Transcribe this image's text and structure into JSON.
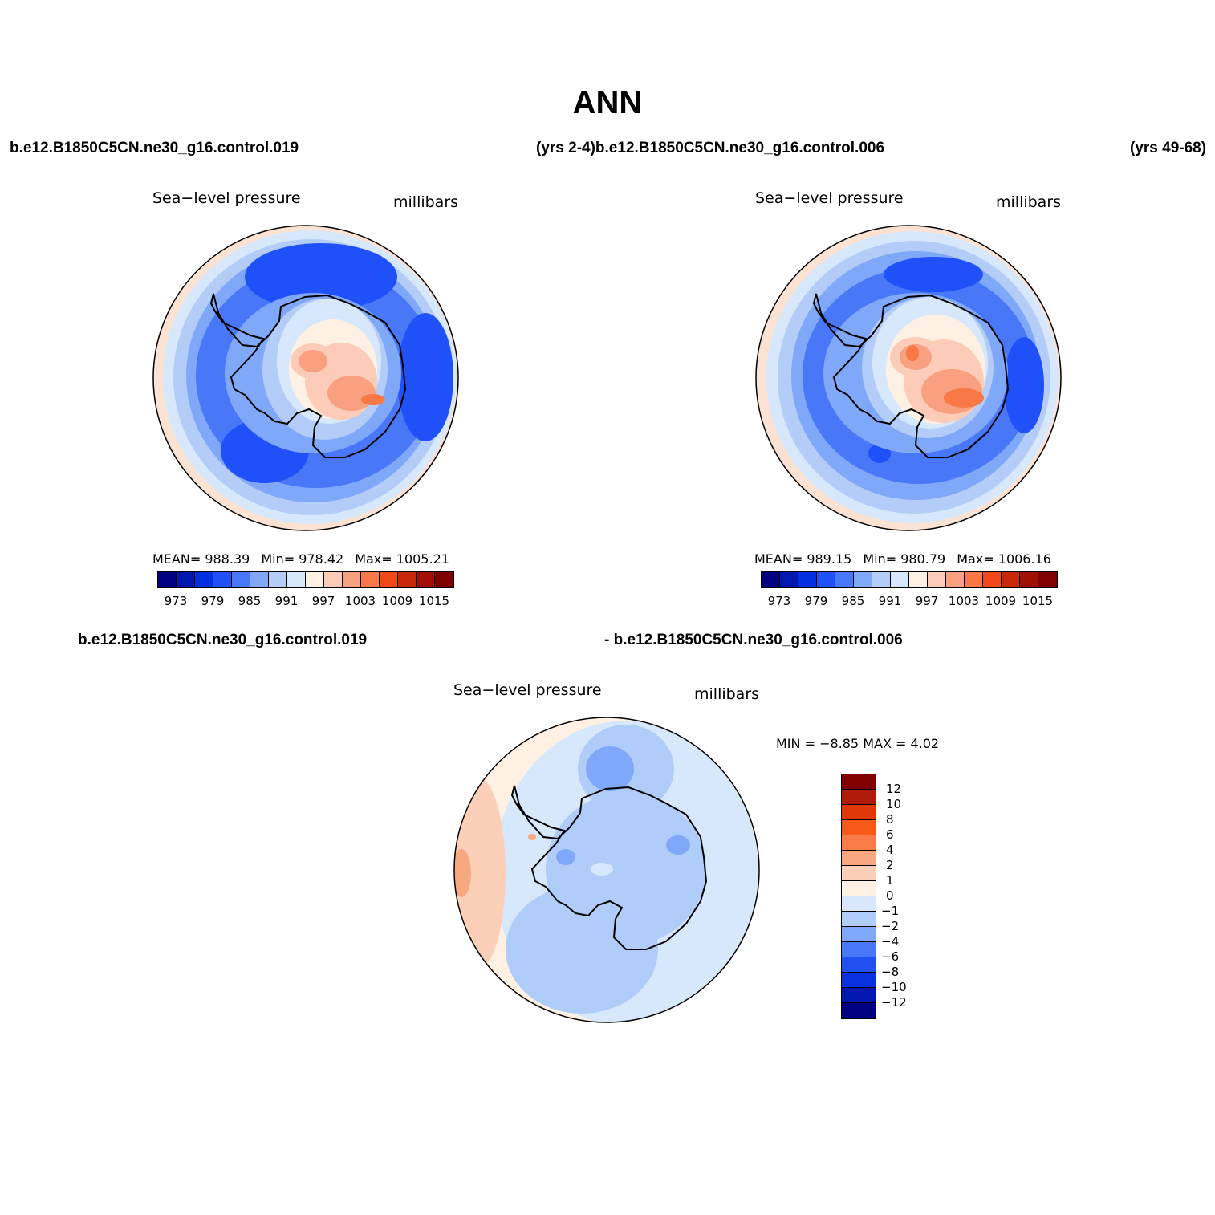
{
  "title": "ANN",
  "top_left_case": "b.e12.B1850C5CN.ne30_g16.control.019",
  "top_middle_case": "(yrs 2-4)b.e12.B1850C5CN.ne30_g16.control.006",
  "top_right_case": "(yrs 49-68)",
  "bottom_left_case": "b.e12.B1850C5CN.ne30_g16.control.019",
  "bottom_middle_case": "- b.e12.B1850C5CN.ne30_g16.control.006",
  "panels": [
    {
      "variable": "Sea−level pressure",
      "units": "millibars",
      "mean": "MEAN=  988.39",
      "min": "Min=  978.42",
      "max": "Max=  1005.21"
    },
    {
      "variable": "Sea−level pressure",
      "units": "millibars",
      "mean": "MEAN=  989.15",
      "min": "Min=  980.79",
      "max": "Max=  1006.16"
    },
    {
      "variable": "Sea−level pressure",
      "units": "millibars",
      "minmax": "MIN =   −8.85  MAX =     4.02"
    }
  ],
  "abs_colorbar": {
    "colors": [
      "#000080",
      "#0018b0",
      "#0030e0",
      "#2050f8",
      "#4878f8",
      "#80a8f8",
      "#b4ccf8",
      "#d8e8fc",
      "#fff0e4",
      "#fcccb8",
      "#f8a080",
      "#f87848",
      "#f04818",
      "#c82808",
      "#a01004",
      "#800000"
    ],
    "labels": [
      "973",
      "979",
      "985",
      "991",
      "997",
      "1003",
      "1009",
      "1015"
    ]
  },
  "diff_colorbar": {
    "colors": [
      "#800000",
      "#b01c08",
      "#e03808",
      "#f85818",
      "#f87c48",
      "#f8a880",
      "#fccfb8",
      "#fff0e4",
      "#d8e8fc",
      "#b0ccf8",
      "#80a8f8",
      "#4878f8",
      "#2050f0",
      "#0830e0",
      "#0018b0",
      "#000080"
    ],
    "labels": [
      "12",
      "10",
      "8",
      "6",
      "4",
      "2",
      "1",
      "0",
      "−1",
      "−2",
      "−4",
      "−6",
      "−8",
      "−10",
      "−12"
    ]
  }
}
